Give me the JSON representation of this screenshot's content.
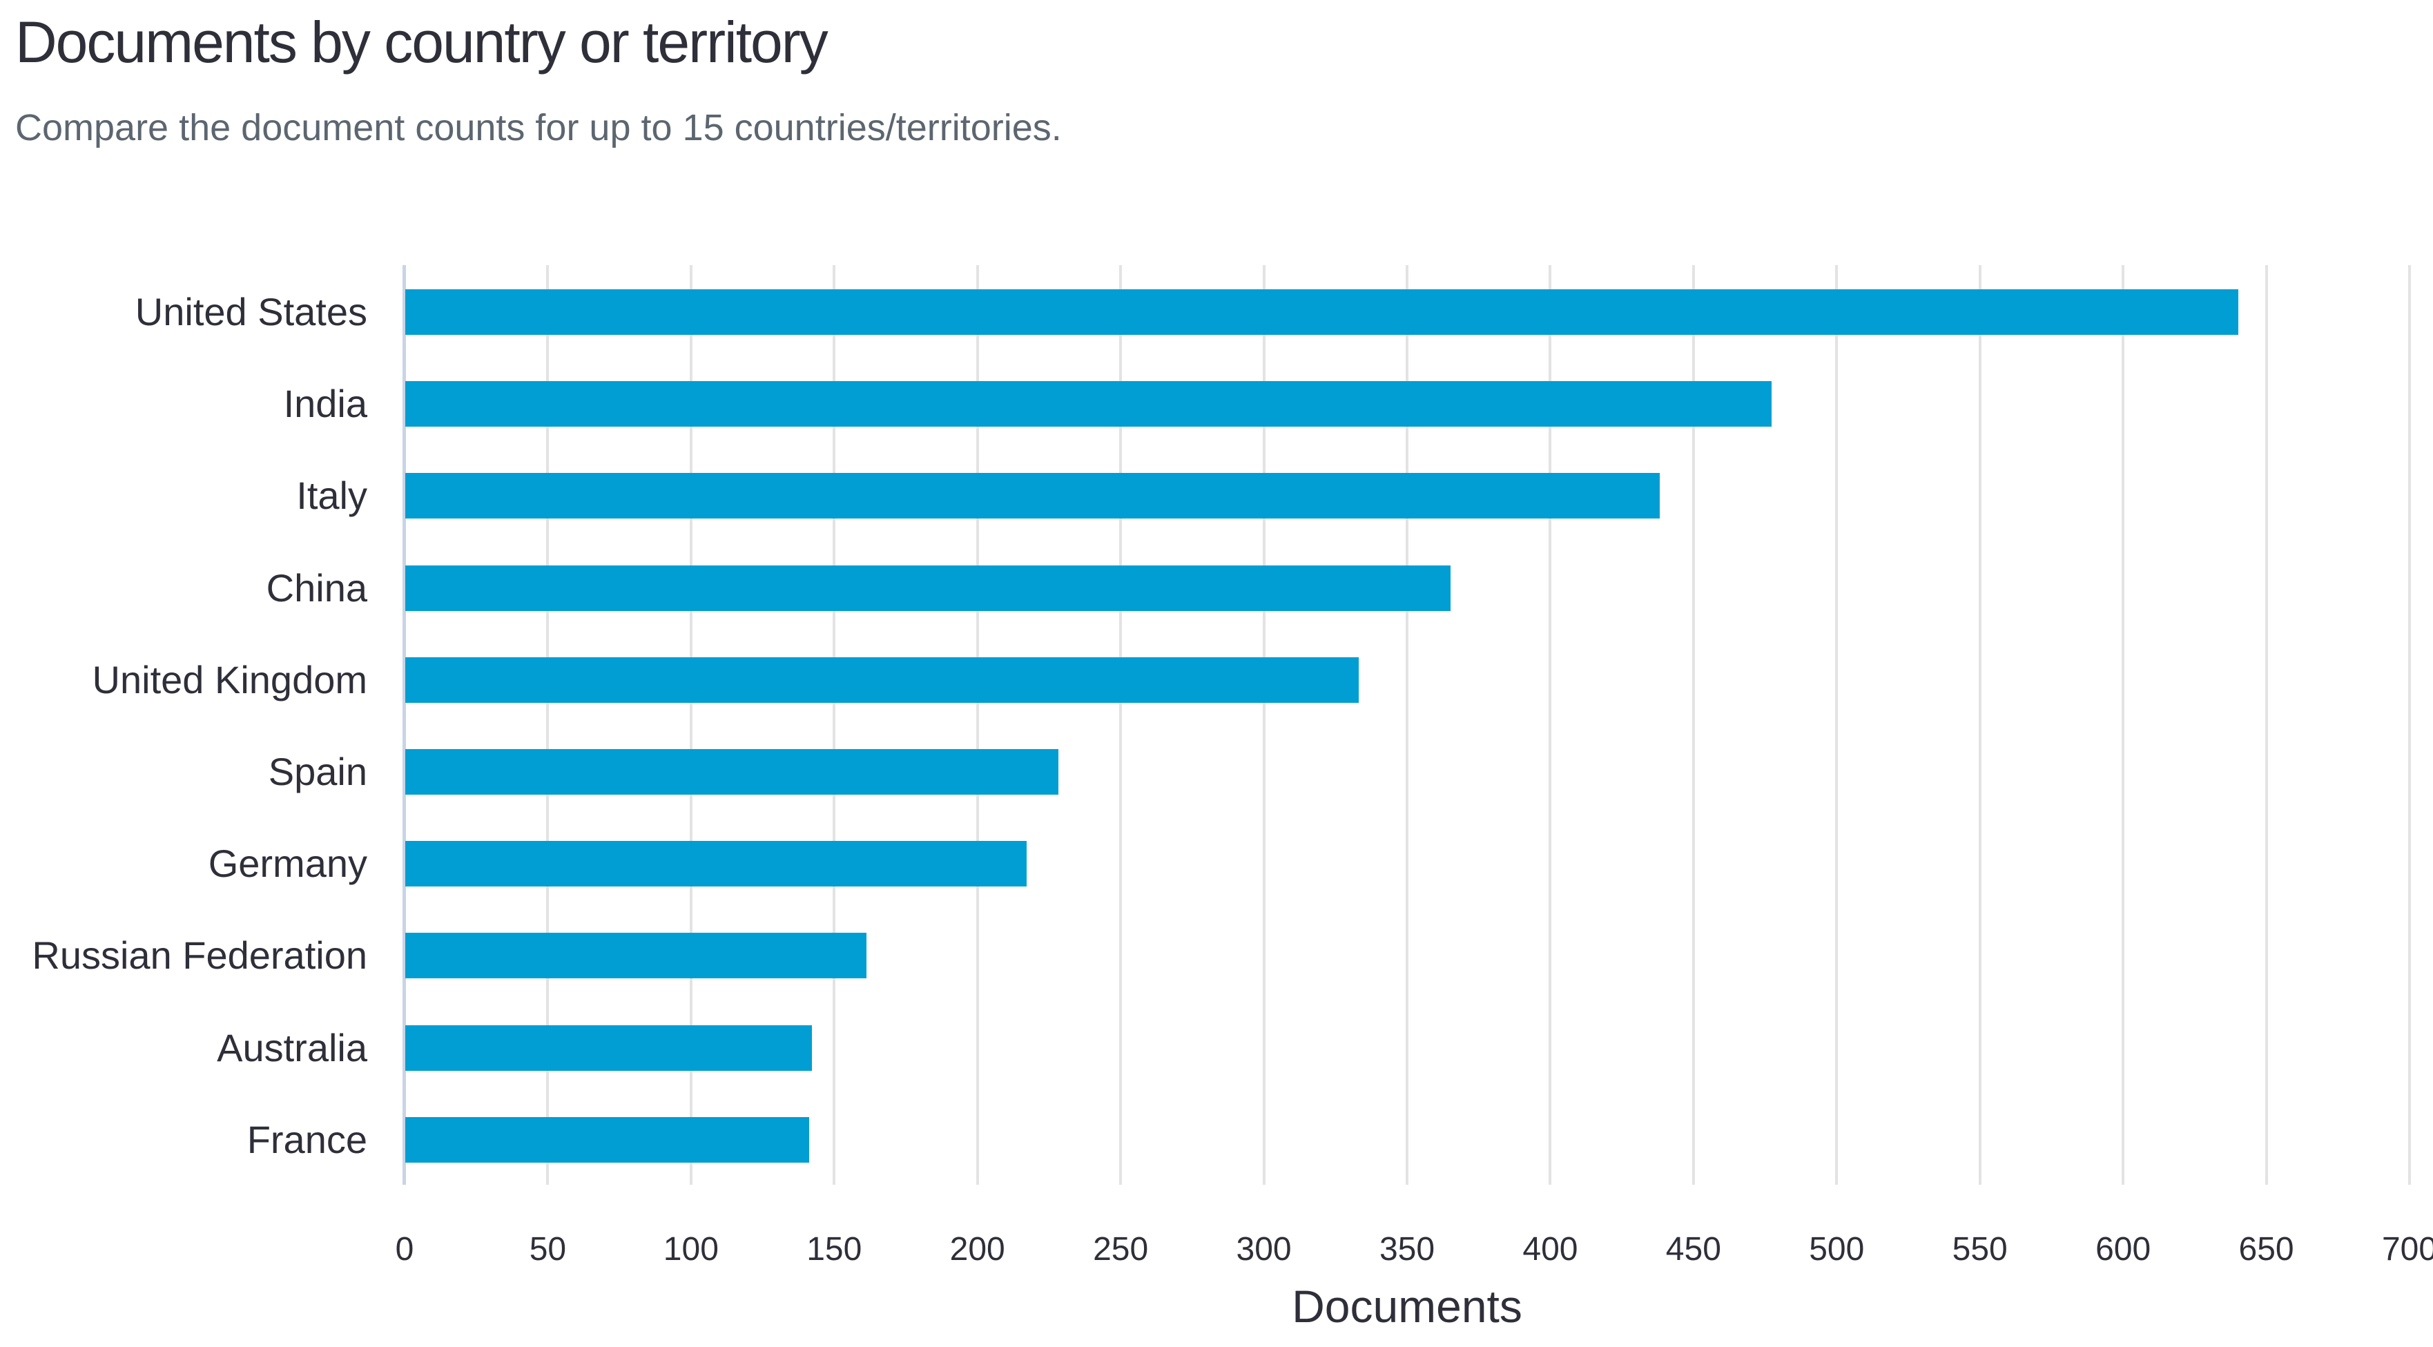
{
  "header": {
    "title": "Documents by country or territory",
    "subtitle": "Compare the document counts for up to 15 countries/territories."
  },
  "chart_data": {
    "type": "bar",
    "orientation": "horizontal",
    "title": "Documents by country or territory",
    "subtitle": "Compare the document counts for up to 15 countries/territories.",
    "categories": [
      "United States",
      "India",
      "Italy",
      "China",
      "United Kingdom",
      "Spain",
      "Germany",
      "Russian Federation",
      "Australia",
      "France"
    ],
    "values": [
      640,
      477,
      438,
      365,
      333,
      228,
      217,
      161,
      142,
      141
    ],
    "xlabel": "Documents",
    "ylabel": "",
    "xlim": [
      0,
      700
    ],
    "xticks": [
      0,
      50,
      100,
      150,
      200,
      250,
      300,
      350,
      400,
      450,
      500,
      550,
      600,
      650,
      700
    ],
    "grid": "vertical-gridlines-on",
    "legend": "none",
    "bar_color": "#009ed2",
    "gridline_color": "#e3e3e3",
    "axis_line_color": "#c9d4e6",
    "text_color": "#2e2f39",
    "subtitle_color": "#5c6670"
  }
}
